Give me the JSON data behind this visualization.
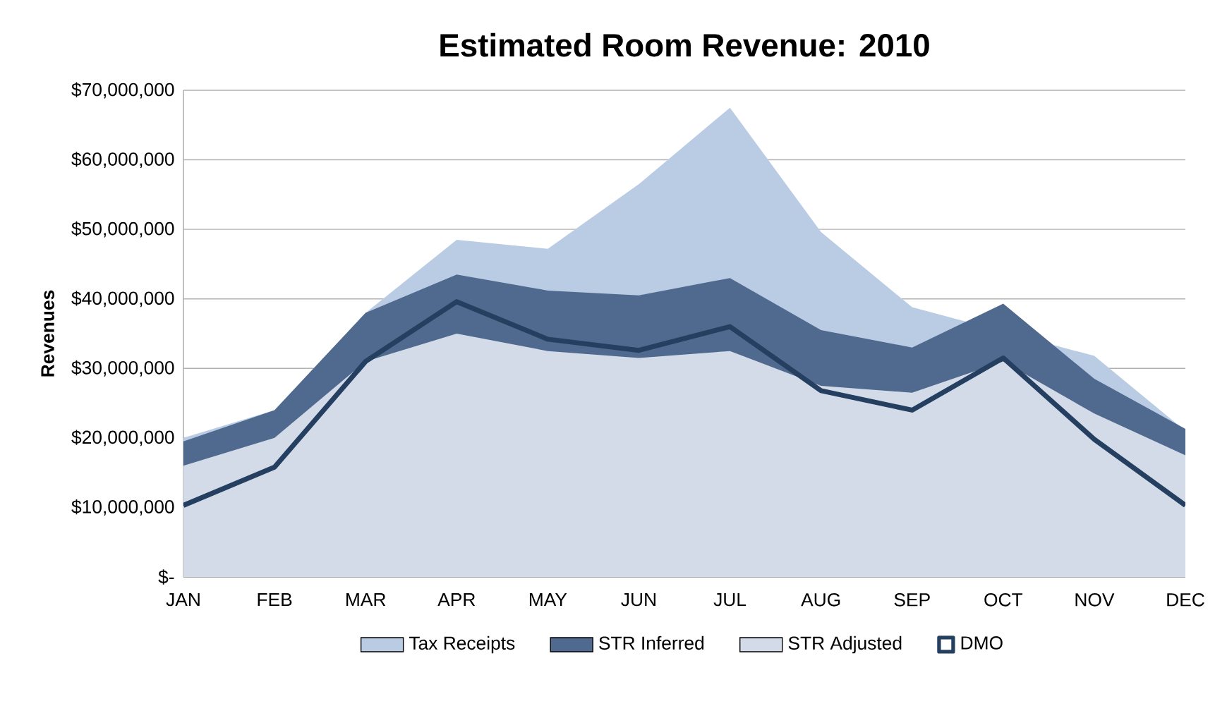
{
  "chart_data": {
    "type": "area",
    "title": "Estimated Room Revenue: 2010",
    "ylabel": "Revenues",
    "categories": [
      "JAN",
      "FEB",
      "MAR",
      "APR",
      "MAY",
      "JUN",
      "JUL",
      "AUG",
      "SEP",
      "OCT",
      "NOV",
      "DEC"
    ],
    "series": [
      {
        "name": "Tax Receipts",
        "color": "#b9cce4",
        "values": [
          20000000,
          24000000,
          38000000,
          48500000,
          47200000,
          56500000,
          67500000,
          49600000,
          38800000,
          null,
          31800000,
          21000000
        ]
      },
      {
        "name": "STR Inferred",
        "color": "#50698f",
        "values": [
          19500000,
          24000000,
          38000000,
          43500000,
          41200000,
          40500000,
          43000000,
          35500000,
          33000000,
          39300000,
          28500000,
          21300000
        ]
      },
      {
        "name": "STR Adjusted",
        "color": "#d3dbe9",
        "values": [
          16000000,
          20000000,
          31000000,
          35000000,
          32500000,
          31500000,
          32500000,
          27500000,
          26500000,
          31000000,
          23500000,
          17500000
        ]
      },
      {
        "name": "DMO",
        "type": "line",
        "color": "#243f60",
        "values": [
          10300000,
          15800000,
          31000000,
          39600000,
          34200000,
          32600000,
          36000000,
          26800000,
          24000000,
          31500000,
          19800000,
          10300000
        ]
      }
    ],
    "ylim": [
      0,
      70000000
    ],
    "yticks": [
      {
        "value": 0,
        "label": "$-"
      },
      {
        "value": 10000000,
        "label": "$10,000,000"
      },
      {
        "value": 20000000,
        "label": "$20,000,000"
      },
      {
        "value": 30000000,
        "label": "$30,000,000"
      },
      {
        "value": 40000000,
        "label": "$40,000,000"
      },
      {
        "value": 50000000,
        "label": "$50,000,000"
      },
      {
        "value": 60000000,
        "label": "$60,000,000"
      },
      {
        "value": 70000000,
        "label": "$70,000,000"
      }
    ],
    "grid": "y",
    "legend": "bottom"
  }
}
